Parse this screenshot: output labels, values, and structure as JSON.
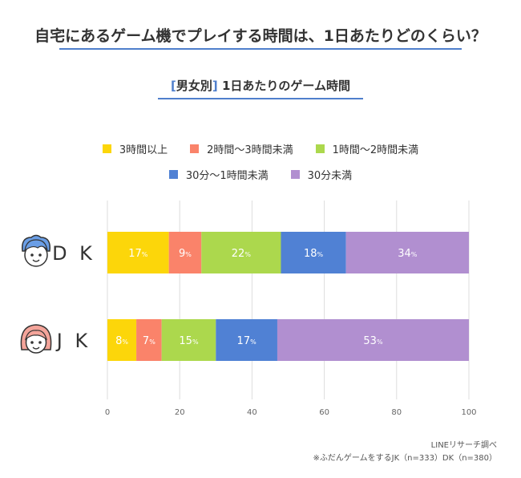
{
  "title": "自宅にあるゲーム機でプレイする時間は、1日あたりどのくらい？",
  "subtitle": {
    "bracket_open": "[",
    "label": "男女別",
    "bracket_close": "]",
    "text": "1日あたりのゲーム時間"
  },
  "source": "LINEリサーチ調べ",
  "note": "※ふだんゲームをするJK（n=333）DK（n=380）",
  "percent_suffix": "%",
  "chart_data": {
    "type": "bar",
    "orientation": "horizontal",
    "stacked": true,
    "categories": [
      "DK",
      "JK"
    ],
    "series": [
      {
        "name": "3時間以上",
        "color": "#fcd60a",
        "values": [
          17,
          8
        ]
      },
      {
        "name": "2時間〜3時間未満",
        "color": "#fa836a",
        "values": [
          9,
          7
        ]
      },
      {
        "name": "1時間〜2時間未満",
        "color": "#acd84d",
        "values": [
          22,
          15
        ]
      },
      {
        "name": "30分〜1時間未満",
        "color": "#5081d4",
        "values": [
          18,
          17
        ]
      },
      {
        "name": "30分未満",
        "color": "#b18fd0",
        "values": [
          34,
          53
        ]
      }
    ],
    "xlim": [
      0,
      100
    ],
    "xticks": [
      0,
      20,
      40,
      60,
      80,
      100
    ],
    "grid": true,
    "legend_position": "top"
  },
  "avatars": [
    {
      "category": "DK",
      "icon": "boy-face-icon",
      "hair_color": "#6a9ee6"
    },
    {
      "category": "JK",
      "icon": "girl-face-icon",
      "hair_color": "#f4a49a"
    }
  ]
}
